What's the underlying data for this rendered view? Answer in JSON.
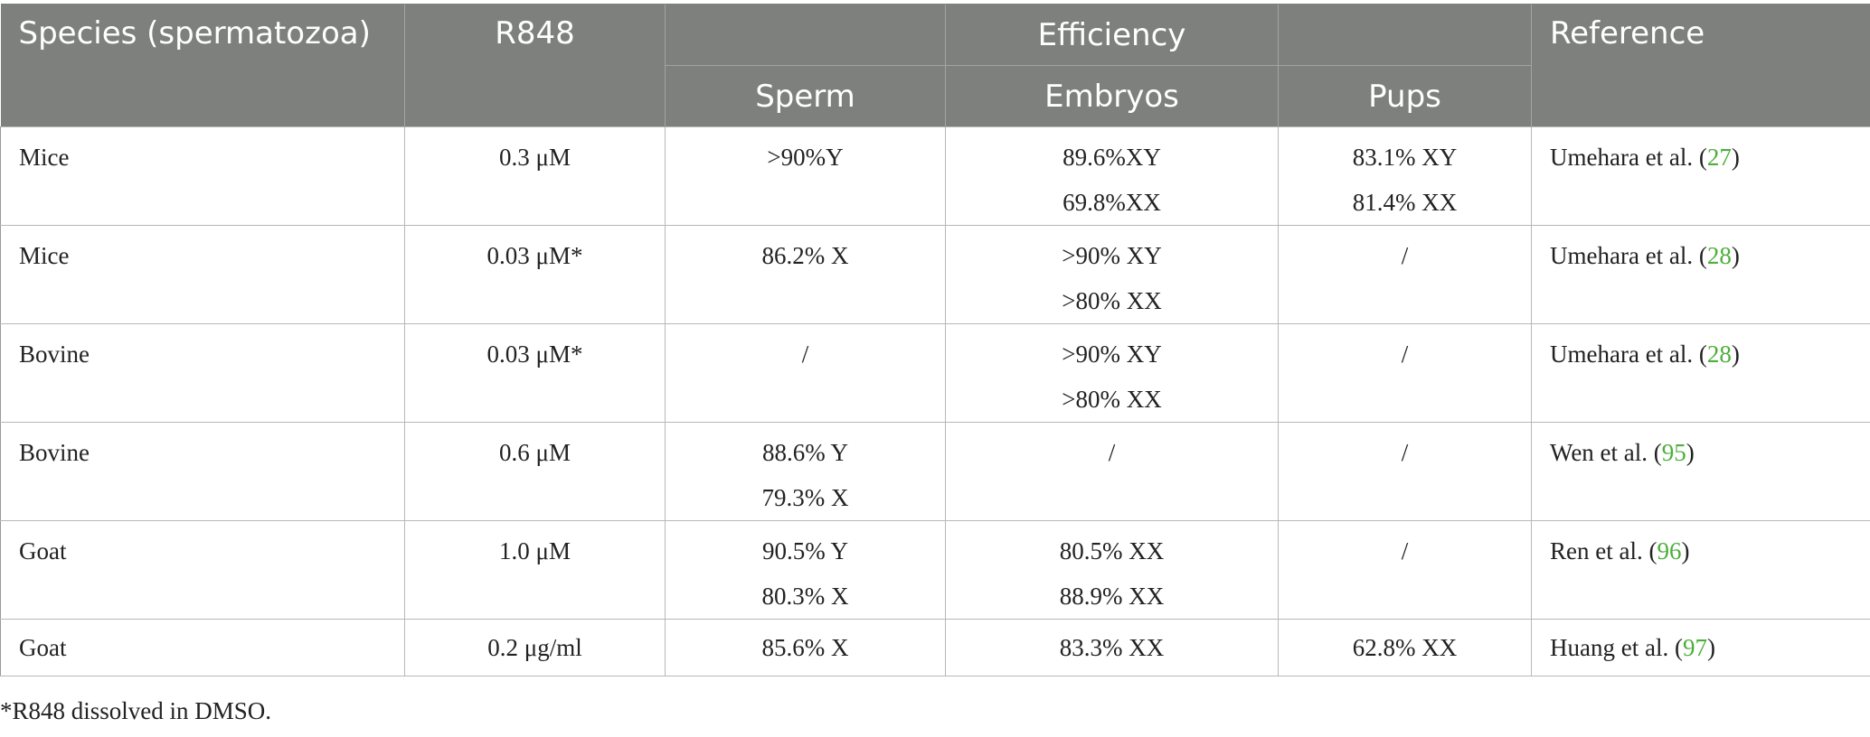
{
  "table": {
    "headers": {
      "species": "Species (spermatozoa)",
      "r848": "R848",
      "efficiency": "Efficiency",
      "reference": "Reference",
      "sub": [
        "Sperm",
        "Embryos",
        "Pups"
      ]
    },
    "rows": [
      {
        "species": "Mice",
        "r848": "0.3 μM",
        "sperm": [
          "˃90%Y"
        ],
        "embryos": [
          "89.6%XY",
          "69.8%XX"
        ],
        "pups": [
          "83.1% XY",
          "81.4% XX"
        ],
        "ref_author": "Umehara et al. (",
        "ref_num": "27",
        "ref_close": ")"
      },
      {
        "species": "Mice",
        "r848": "0.03 μM*",
        "sperm": [
          "86.2% X"
        ],
        "embryos": [
          "˃90% XY",
          "˃80% XX"
        ],
        "pups": [
          "/"
        ],
        "ref_author": "Umehara et al. (",
        "ref_num": "28",
        "ref_close": ")"
      },
      {
        "species": "Bovine",
        "r848": "0.03 μM*",
        "sperm": [
          "/"
        ],
        "embryos": [
          "˃90% XY",
          "˃80% XX"
        ],
        "pups": [
          "/"
        ],
        "ref_author": "Umehara et al. (",
        "ref_num": "28",
        "ref_close": ")"
      },
      {
        "species": "Bovine",
        "r848": "0.6 μM",
        "sperm": [
          "88.6% Y",
          "79.3% X"
        ],
        "embryos": [
          "/"
        ],
        "pups": [
          "/"
        ],
        "ref_author": "Wen et al. (",
        "ref_num": "95",
        "ref_close": ")"
      },
      {
        "species": "Goat",
        "r848": "1.0 μM",
        "sperm": [
          "90.5% Y",
          "80.3% X"
        ],
        "embryos": [
          "80.5% XX",
          "88.9% XX"
        ],
        "pups": [
          "/"
        ],
        "ref_author": "Ren et al. (",
        "ref_num": "96",
        "ref_close": ")"
      },
      {
        "species": "Goat",
        "r848": "0.2 μg/ml",
        "sperm": [
          "85.6% X"
        ],
        "embryos": [
          "83.3% XX"
        ],
        "pups": [
          "62.8% XX"
        ],
        "ref_author": "Huang et al. (",
        "ref_num": "97",
        "ref_close": ")"
      }
    ],
    "footnote": "*R848 dissolved in DMSO."
  }
}
